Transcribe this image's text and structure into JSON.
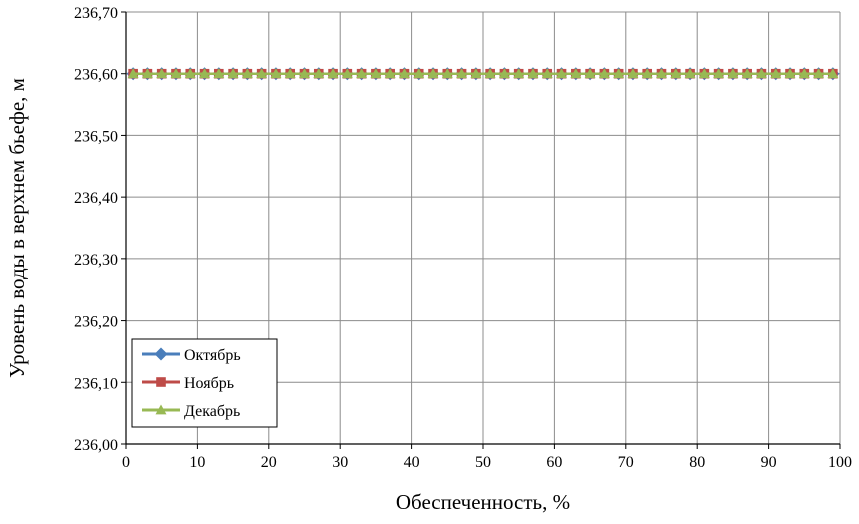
{
  "chart_data": {
    "type": "line",
    "title": "",
    "xlabel": "Обеспеченность, %",
    "ylabel": "Уровень воды в верхнем бьефе, м",
    "xlim": [
      0,
      100
    ],
    "ylim": [
      236.0,
      236.7
    ],
    "x_ticks": [
      "0",
      "10",
      "20",
      "30",
      "40",
      "50",
      "60",
      "70",
      "80",
      "90",
      "100"
    ],
    "y_ticks": [
      "236,00",
      "236,10",
      "236,20",
      "236,30",
      "236,40",
      "236,50",
      "236,60",
      "236,70"
    ],
    "grid": true,
    "legend_position": "bottom-left",
    "x": [
      1,
      3,
      5,
      7,
      9,
      11,
      13,
      15,
      17,
      19,
      21,
      23,
      25,
      27,
      29,
      31,
      33,
      35,
      37,
      39,
      41,
      43,
      45,
      47,
      49,
      51,
      53,
      55,
      57,
      59,
      61,
      63,
      65,
      67,
      69,
      71,
      73,
      75,
      77,
      79,
      81,
      83,
      85,
      87,
      89,
      91,
      93,
      95,
      97,
      99
    ],
    "series": [
      {
        "name": "Октябрь",
        "color": "#4a7ebb",
        "marker": "diamond",
        "value": 236.6
      },
      {
        "name": "Ноябрь",
        "color": "#be4b48",
        "marker": "square",
        "value": 236.6
      },
      {
        "name": "Декабрь",
        "color": "#98b954",
        "marker": "triangle",
        "value": 236.6
      }
    ]
  }
}
